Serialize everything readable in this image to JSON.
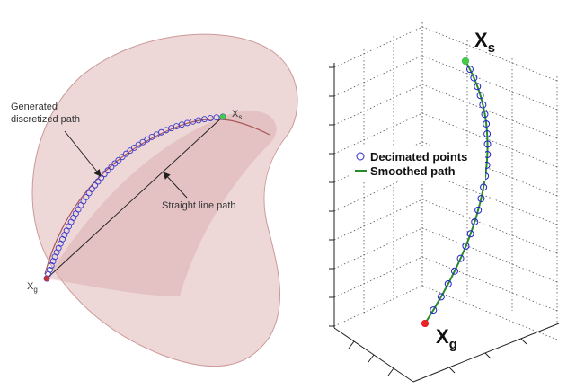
{
  "left_figure": {
    "path_label": [
      "Generated",
      "discretized path"
    ],
    "line_label": "Straight line path",
    "start_label": {
      "main": "X",
      "sub": "s"
    },
    "goal_label": {
      "main": "X",
      "sub": "g"
    }
  },
  "right_figure": {
    "legend": [
      "Decimated points",
      "Smoothed path"
    ],
    "start_label": {
      "main": "X",
      "sub": "s"
    },
    "goal_label": {
      "main": "X",
      "sub": "g"
    }
  }
}
